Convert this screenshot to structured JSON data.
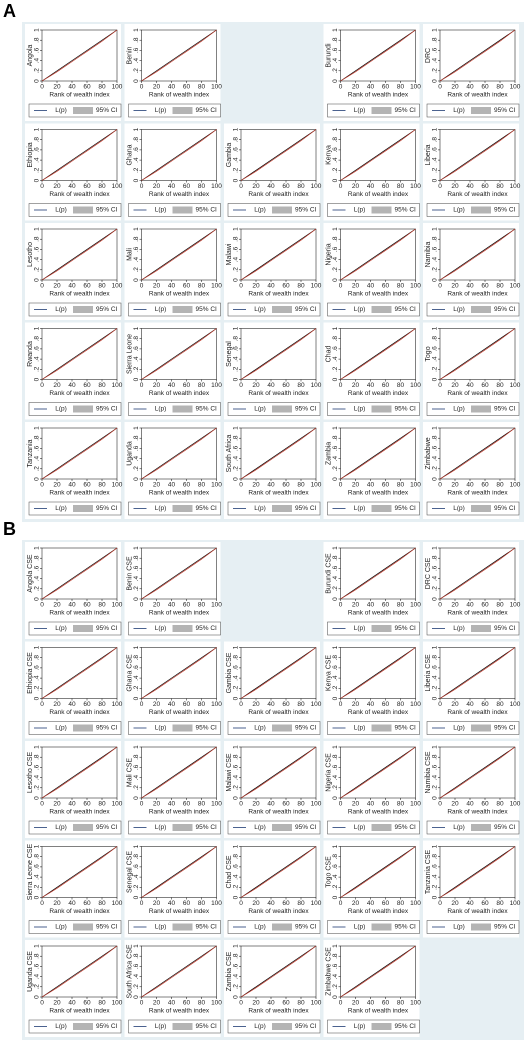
{
  "chart_data": {
    "type": "line",
    "xlabel": "Rank of wealth index",
    "xlim": [
      0,
      100
    ],
    "ylim": [
      0,
      1
    ],
    "xticks": [
      0,
      20,
      40,
      60,
      80,
      100
    ],
    "yticks": [
      0,
      {
        "value": 0.2,
        "label": ".2"
      },
      {
        "value": 0.4,
        "label": ".4"
      },
      {
        "value": 0.6,
        "label": ".6"
      },
      {
        "value": 0.8,
        "label": ".8"
      },
      1
    ],
    "equality_line": {
      "color": "#000000",
      "x": [
        0,
        100
      ],
      "values": [
        0,
        1
      ]
    },
    "series": [
      {
        "name": "L(p)",
        "color": "#c0392b",
        "x": [
          0,
          10,
          20,
          30,
          40,
          50,
          60,
          70,
          80,
          90,
          100
        ],
        "values": [
          0,
          0.09,
          0.18,
          0.28,
          0.38,
          0.48,
          0.58,
          0.68,
          0.78,
          0.89,
          1
        ]
      }
    ],
    "ci": {
      "name": "95% CI",
      "color": "#b4b4b4"
    },
    "panels": [
      {
        "label": "A",
        "plots": [
          "Angola",
          "Benin",
          null,
          "Burundi",
          "DRC",
          "Ethiopia",
          "Ghana",
          "Gambia",
          "Kenya",
          "Liberia",
          "Lesotho",
          "Mali",
          "Malawi",
          "Nigeria",
          "Namibia",
          "Rwanda",
          "Sierra Leone",
          "Senegal",
          "Chad",
          "Togo",
          "Tanzania",
          "Uganda",
          "South Africa",
          "Zambia",
          "Zimbabwe"
        ]
      },
      {
        "label": "B",
        "plots": [
          "Angola CSE",
          "Benin CSE",
          null,
          "Burundi CSE",
          "DRC CSE",
          "Ethiopia CSE",
          "Ghana CSE",
          "Gambia CSE",
          "Kenya CSE",
          "Liberia CSE",
          "Lesotho CSE",
          "Mali CSE",
          "Malawi CSE",
          "Nigeria CSE",
          "Namibia CSE",
          "Sierra Leone CSE",
          "Senegal CSE",
          "Chad CSE",
          "Togo CSE",
          "Tanzania CSE",
          "Uganda CSE",
          "South Africa CSE",
          "Zambia CSE",
          "Zimbabwe CSE",
          null
        ]
      }
    ]
  }
}
